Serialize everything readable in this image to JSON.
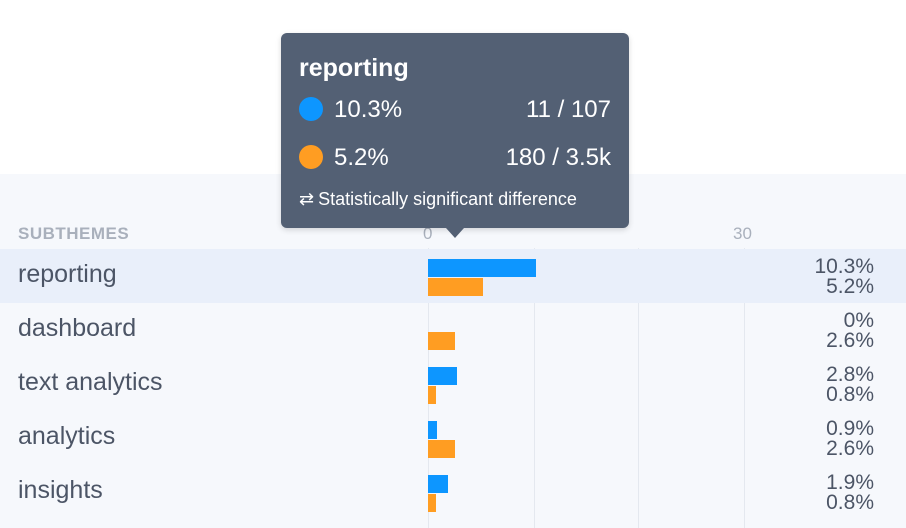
{
  "table": {
    "column_header": "SUBTHEMES",
    "ticks": [
      "0",
      "30"
    ]
  },
  "chart_data": {
    "type": "bar",
    "categories": [
      "reporting",
      "dashboard",
      "text analytics",
      "analytics",
      "insights"
    ],
    "series": [
      {
        "values": [
          10.3,
          0,
          2.8,
          0.9,
          1.9
        ],
        "color": "#0d96ff"
      },
      {
        "values": [
          5.2,
          2.6,
          0.8,
          2.6,
          0.8
        ],
        "color": "#ff9d22"
      }
    ],
    "labels": [
      [
        "10.3%",
        "5.2%"
      ],
      [
        "0%",
        "2.6%"
      ],
      [
        "2.8%",
        "0.8%"
      ],
      [
        "0.9%",
        "2.6%"
      ],
      [
        "1.9%",
        "0.8%"
      ]
    ],
    "xlim": [
      0,
      30
    ],
    "highlighted_category": "reporting"
  },
  "tooltip": {
    "title": "reporting",
    "rows": [
      {
        "pct": "10.3%",
        "count": "11 / 107",
        "color": "#0d96ff"
      },
      {
        "pct": "5.2%",
        "count": "180 / 3.5k",
        "color": "#ff9d22"
      }
    ],
    "significance_icon": "⇄",
    "significance_text": "Statistically significant difference"
  }
}
